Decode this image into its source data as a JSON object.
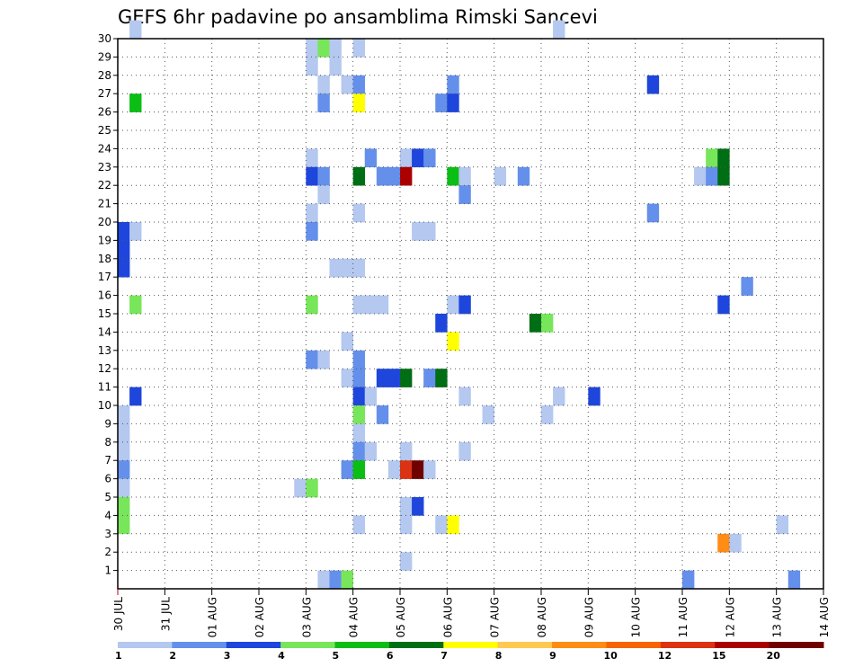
{
  "chart_data": {
    "type": "heatmap",
    "title": "GEFS 6hr padavine po ansamblima Rimski Sancevi",
    "xlabel": "",
    "ylabel": "",
    "x_tick_labels": [
      "30 JUL",
      "31 JUL",
      "01 AUG",
      "02 AUG",
      "03 AUG",
      "04 AUG",
      "05 AUG",
      "06 AUG",
      "07 AUG",
      "08 AUG",
      "09 AUG",
      "10 AUG",
      "11 AUG",
      "12 AUG",
      "13 AUG",
      "14 AUG"
    ],
    "y_tick_labels": [
      "1",
      "2",
      "3",
      "4",
      "5",
      "6",
      "7",
      "8",
      "9",
      "10",
      "11",
      "12",
      "13",
      "14",
      "15",
      "16",
      "17",
      "18",
      "19",
      "20",
      "21",
      "22",
      "23",
      "24",
      "25",
      "26",
      "27",
      "28",
      "29",
      "30"
    ],
    "x_unit": "6-hour step from 30 JUL 00Z (4 steps per day)",
    "x_range": [
      0,
      60
    ],
    "y_range": [
      0,
      30
    ],
    "grid": true,
    "colorbar": {
      "labels": [
        "1",
        "2",
        "3",
        "4",
        "5",
        "6",
        "7",
        "8",
        "9",
        "10",
        "12",
        "15",
        "20"
      ],
      "colors": [
        "#b4c8f0",
        "#6490ec",
        "#1e46dc",
        "#78e65a",
        "#0abe14",
        "#006e14",
        "#ffff00",
        "#ffc850",
        "#ff8c14",
        "#f56400",
        "#dc3214",
        "#aa0000",
        "#6e0000"
      ]
    },
    "cells": [
      [
        1,
        30,
        1
      ],
      [
        37,
        30,
        1
      ],
      [
        16,
        29,
        1
      ],
      [
        17,
        29,
        4
      ],
      [
        18,
        29,
        1
      ],
      [
        20,
        29,
        1
      ],
      [
        16,
        28,
        1
      ],
      [
        18,
        28,
        1
      ],
      [
        17,
        27,
        1
      ],
      [
        19,
        27,
        1
      ],
      [
        20,
        27,
        2
      ],
      [
        28,
        27,
        2
      ],
      [
        45,
        27,
        3
      ],
      [
        1,
        26,
        5
      ],
      [
        17,
        26,
        2
      ],
      [
        20,
        26,
        7
      ],
      [
        27,
        26,
        2
      ],
      [
        28,
        26,
        3
      ],
      [
        16,
        23,
        1
      ],
      [
        21,
        23,
        2
      ],
      [
        24,
        23,
        1
      ],
      [
        25,
        23,
        3
      ],
      [
        26,
        23,
        2
      ],
      [
        50,
        23,
        4
      ],
      [
        51,
        23,
        6
      ],
      [
        16,
        22,
        3
      ],
      [
        17,
        22,
        2
      ],
      [
        20,
        22,
        6
      ],
      [
        22,
        22,
        2
      ],
      [
        23,
        22,
        2
      ],
      [
        24,
        22,
        12
      ],
      [
        28,
        22,
        5
      ],
      [
        29,
        22,
        1
      ],
      [
        32,
        22,
        1
      ],
      [
        34,
        22,
        2
      ],
      [
        49,
        22,
        1
      ],
      [
        50,
        22,
        2
      ],
      [
        51,
        22,
        6
      ],
      [
        17,
        21,
        1
      ],
      [
        29,
        21,
        2
      ],
      [
        16,
        20,
        1
      ],
      [
        20,
        20,
        1
      ],
      [
        45,
        20,
        2
      ],
      [
        0,
        19,
        3
      ],
      [
        1,
        19,
        1
      ],
      [
        16,
        19,
        2
      ],
      [
        25,
        19,
        1
      ],
      [
        26,
        19,
        1
      ],
      [
        0,
        18,
        3
      ],
      [
        18,
        17,
        1
      ],
      [
        19,
        17,
        1
      ],
      [
        20,
        17,
        1
      ],
      [
        0,
        17,
        3
      ],
      [
        53,
        16,
        2
      ],
      [
        1,
        15,
        4
      ],
      [
        16,
        15,
        4
      ],
      [
        20,
        15,
        1
      ],
      [
        21,
        15,
        1
      ],
      [
        22,
        15,
        1
      ],
      [
        28,
        15,
        1
      ],
      [
        29,
        15,
        3
      ],
      [
        51,
        15,
        3
      ],
      [
        27,
        14,
        3
      ],
      [
        35,
        14,
        6
      ],
      [
        36,
        14,
        4
      ],
      [
        28,
        13,
        7
      ],
      [
        19,
        13,
        1
      ],
      [
        16,
        12,
        2
      ],
      [
        17,
        12,
        1
      ],
      [
        20,
        12,
        2
      ],
      [
        19,
        11,
        1
      ],
      [
        20,
        11,
        2
      ],
      [
        22,
        11,
        3
      ],
      [
        23,
        11,
        3
      ],
      [
        24,
        11,
        6
      ],
      [
        26,
        11,
        2
      ],
      [
        27,
        11,
        6
      ],
      [
        1,
        10,
        3
      ],
      [
        20,
        10,
        3
      ],
      [
        21,
        10,
        1
      ],
      [
        29,
        10,
        1
      ],
      [
        37,
        10,
        1
      ],
      [
        40,
        10,
        3
      ],
      [
        0,
        9,
        1
      ],
      [
        20,
        9,
        4
      ],
      [
        22,
        9,
        2
      ],
      [
        31,
        9,
        1
      ],
      [
        36,
        9,
        1
      ],
      [
        0,
        8,
        1
      ],
      [
        20,
        8,
        1
      ],
      [
        0,
        7,
        1
      ],
      [
        20,
        7,
        2
      ],
      [
        21,
        7,
        1
      ],
      [
        24,
        7,
        1
      ],
      [
        29,
        7,
        1
      ],
      [
        0,
        6,
        2
      ],
      [
        19,
        6,
        2
      ],
      [
        20,
        6,
        5
      ],
      [
        23,
        6,
        1
      ],
      [
        24,
        6,
        11
      ],
      [
        25,
        6,
        13
      ],
      [
        26,
        6,
        1
      ],
      [
        0,
        5,
        1
      ],
      [
        15,
        5,
        1
      ],
      [
        16,
        5,
        4
      ],
      [
        0,
        4,
        4
      ],
      [
        24,
        4,
        1
      ],
      [
        25,
        4,
        3
      ],
      [
        0,
        3,
        4
      ],
      [
        20,
        3,
        1
      ],
      [
        24,
        3,
        1
      ],
      [
        27,
        3,
        1
      ],
      [
        28,
        3,
        7
      ],
      [
        56,
        3,
        1
      ],
      [
        51,
        2,
        9
      ],
      [
        52,
        2,
        1
      ],
      [
        24,
        1,
        1
      ],
      [
        17,
        0,
        1
      ],
      [
        18,
        0,
        2
      ],
      [
        19,
        0,
        4
      ],
      [
        48,
        0,
        2
      ],
      [
        57,
        0,
        2
      ]
    ]
  }
}
